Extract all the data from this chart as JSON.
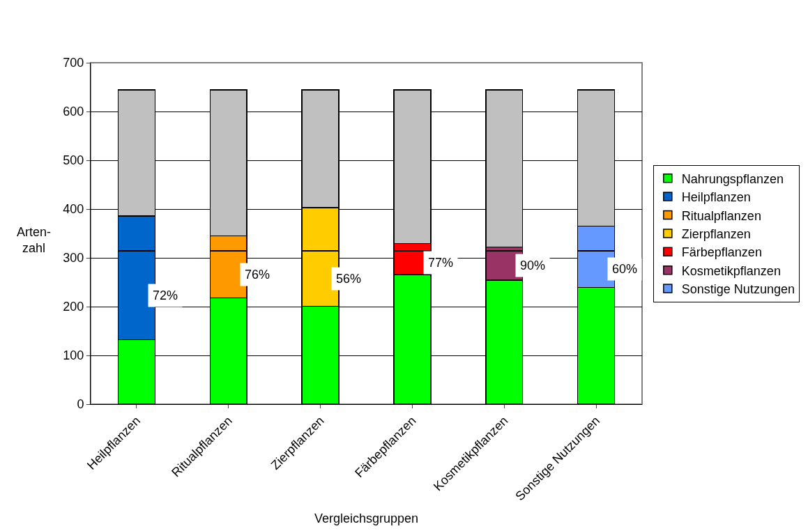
{
  "chart_data": {
    "type": "bar",
    "stacked": true,
    "xlabel": "Vergleichsgruppen",
    "ylabel": "Arten-\nzahl",
    "categories": [
      "Heilpflanzen",
      "Ritualpflanzen",
      "Zierpflanzen",
      "Färbepflanzen",
      "Kosmetikpflanzen",
      "Sonstige Nutzungen"
    ],
    "series": [
      {
        "name": "Nahrungspflanzen",
        "color": "#00ff00",
        "values": [
          132,
          218,
          201,
          266,
          254,
          239
        ]
      },
      {
        "colors": [
          "#0066cc",
          "#ff9900",
          "#ffcc00",
          "#ff0000",
          "#993366",
          "#6699ff"
        ],
        "values": [
          182,
          96,
          113,
          48,
          60,
          75
        ]
      },
      {
        "name": "Heilpflanzen",
        "color": "#0066cc",
        "values": [
          72,
          null,
          null,
          null,
          null,
          null
        ]
      },
      {
        "name": "Ritualpflanzen",
        "color": "#ff9900",
        "values": [
          null,
          31,
          null,
          null,
          null,
          null
        ]
      },
      {
        "name": "Zierpflanzen",
        "color": "#ffcc00",
        "values": [
          null,
          null,
          89,
          null,
          null,
          null
        ]
      },
      {
        "name": "Färbepflanzen",
        "color": "#ff0000",
        "values": [
          null,
          null,
          null,
          15,
          null,
          null
        ]
      },
      {
        "name": "Kosmetikpflanzen",
        "color": "#993366",
        "values": [
          null,
          null,
          null,
          null,
          8,
          null
        ]
      },
      {
        "name": "Sonstige Nutzungen",
        "color": "#6699ff",
        "values": [
          null,
          null,
          null,
          null,
          null,
          51
        ]
      },
      {
        "color": "#c0c0c0",
        "values": [
          258,
          299,
          241,
          315,
          322,
          279
        ]
      }
    ],
    "ylim": [
      0,
      700
    ],
    "yticks": [
      0,
      100,
      200,
      300,
      400,
      500,
      600,
      700
    ],
    "grid": "y",
    "legend": "right",
    "annotations": [
      "72%",
      "76%",
      "56%",
      "77%",
      "90%",
      "60%"
    ]
  }
}
